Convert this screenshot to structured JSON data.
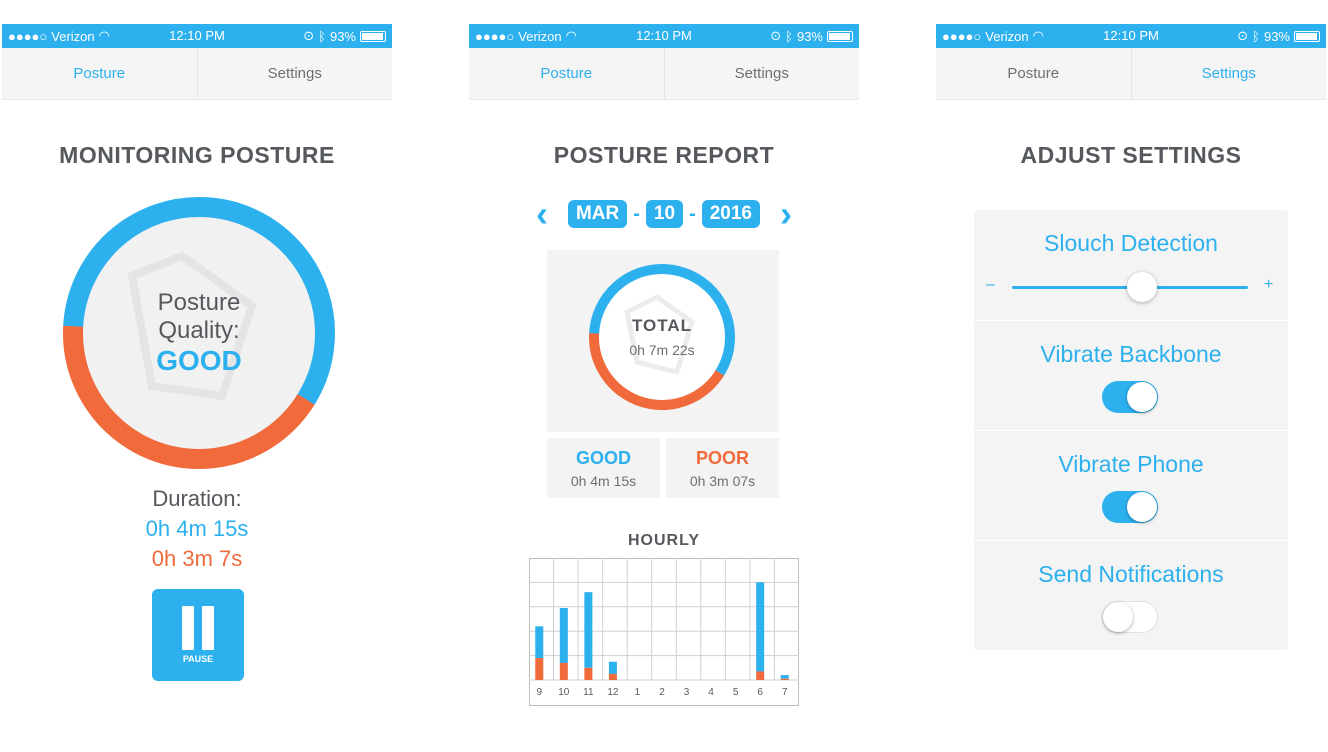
{
  "colors": {
    "accent": "#2db0ee",
    "poor": "#f06a3b",
    "text": "#55585d",
    "muted": "#6f6f6f",
    "card": "#f3f3f3"
  },
  "statusbar": {
    "signal": "●●●●○",
    "carrier": "Verizon",
    "time": "12:10 PM",
    "battery": "93%"
  },
  "tabs": {
    "posture": "Posture",
    "settings": "Settings"
  },
  "screen1": {
    "heading": "MONITORING POSTURE",
    "quality_label": "Posture Quality:",
    "quality_value": "GOOD",
    "ring": {
      "good_fraction": 0.58,
      "poor_fraction": 0.42
    },
    "duration_label": "Duration:",
    "duration_good": "0h 4m 15s",
    "duration_poor": "0h 3m 7s",
    "pause_label": "PAUSE"
  },
  "screen2": {
    "heading": "POSTURE REPORT",
    "date": {
      "month": "MAR",
      "day": "10",
      "year": "2016",
      "separator": "-"
    },
    "prev_icon": "‹",
    "next_icon": "›",
    "total_label": "TOTAL",
    "total_value": "0h 7m 22s",
    "ring": {
      "good_fraction": 0.58,
      "poor_fraction": 0.42
    },
    "good_label": "GOOD",
    "good_value": "0h 4m 15s",
    "poor_label": "POOR",
    "poor_value": "0h 3m 07s",
    "hourly_title": "HOURLY"
  },
  "chart_data": {
    "type": "bar",
    "categories": [
      "9",
      "10",
      "11",
      "12",
      "1",
      "2",
      "3",
      "4",
      "5",
      "6",
      "7"
    ],
    "series": [
      {
        "values": [
          26,
          45,
          62,
          10,
          0,
          0,
          0,
          0,
          0,
          73,
          3
        ]
      },
      {
        "values": [
          18,
          14,
          10,
          5,
          0,
          0,
          0,
          0,
          0,
          7,
          1
        ]
      }
    ],
    "ylim": [
      0,
      100
    ],
    "grid": true
  },
  "screen3": {
    "heading": "ADJUST SETTINGS",
    "slouch_label": "Slouch Detection",
    "slouch_minus": "–",
    "slouch_plus": "+",
    "slouch_value": 0.55,
    "vibrate_backbone_label": "Vibrate Backbone",
    "vibrate_backbone_on": true,
    "vibrate_phone_label": "Vibrate Phone",
    "vibrate_phone_on": true,
    "send_notifications_label": "Send Notifications",
    "send_notifications_on": false
  }
}
